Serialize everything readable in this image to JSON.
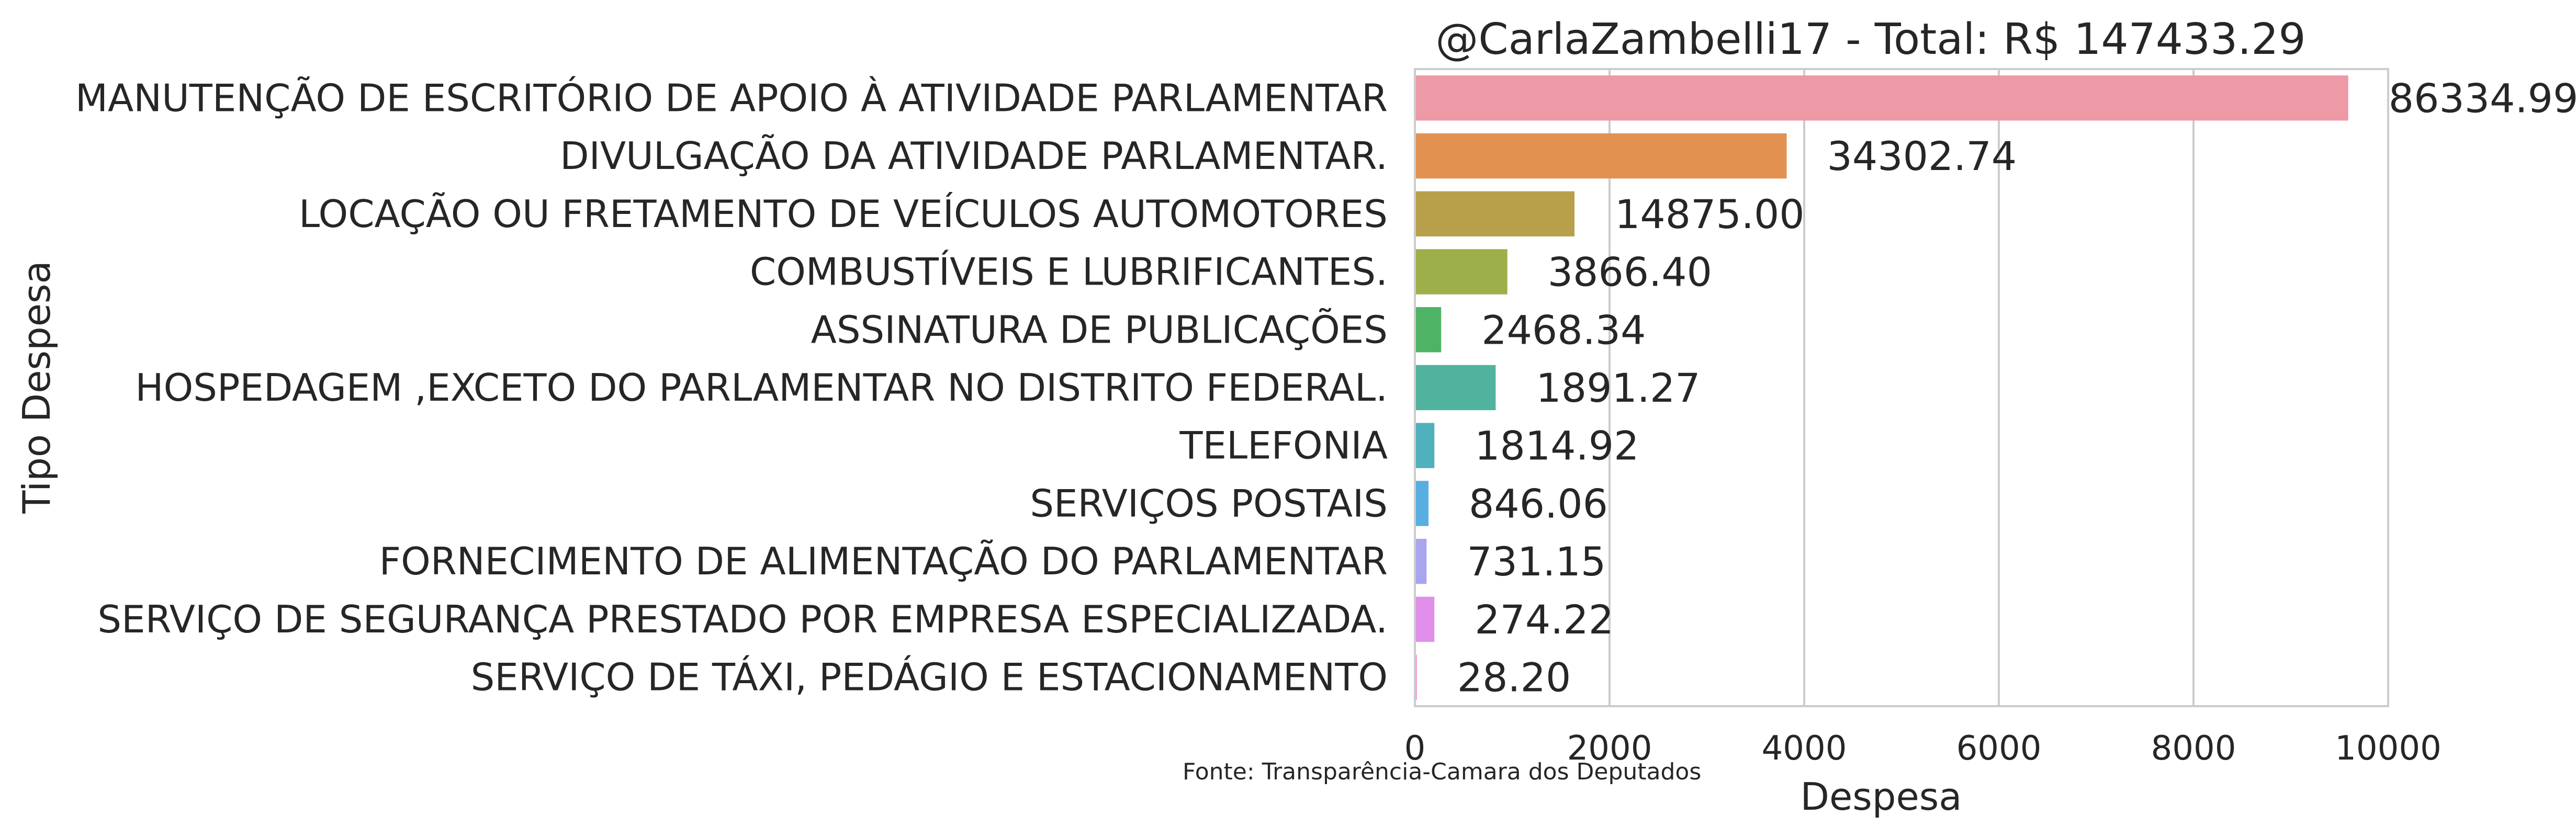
{
  "chart_data": {
    "type": "bar",
    "orientation": "horizontal",
    "title": "@CarlaZambelli17 - Total: R$ 147433.29",
    "xlabel": "Despesa",
    "ylabel": "Tipo Despesa",
    "source_note": "Fonte: Transparência-Camara dos Deputados",
    "xlim": [
      0,
      10000
    ],
    "x_ticks": [
      "0",
      "2000",
      "4000",
      "6000",
      "8000",
      "10000"
    ],
    "grid": true,
    "categories": [
      "MANUTENÇÃO DE ESCRITÓRIO DE APOIO À ATIVIDADE PARLAMENTAR",
      "DIVULGAÇÃO DA ATIVIDADE PARLAMENTAR.",
      "LOCAÇÃO OU FRETAMENTO DE VEÍCULOS AUTOMOTORES",
      "COMBUSTÍVEIS E LUBRIFICANTES.",
      "ASSINATURA DE PUBLICAÇÕES",
      "HOSPEDAGEM ,EXCETO DO PARLAMENTAR NO DISTRITO FEDERAL.",
      "TELEFONIA",
      "SERVIÇOS POSTAIS",
      "FORNECIMENTO DE ALIMENTAÇÃO DO PARLAMENTAR",
      "SERVIÇO DE SEGURANÇA PRESTADO POR EMPRESA ESPECIALIZADA.",
      "SERVIÇO DE TÁXI, PEDÁGIO E ESTACIONAMENTO"
    ],
    "bar_values": [
      9590,
      3820,
      1640,
      950,
      270,
      830,
      200,
      140,
      120,
      200,
      20
    ],
    "value_labels": [
      "86334.99",
      "34302.74",
      "14875.00",
      "3866.40",
      "2468.34",
      "1891.27",
      "1814.92",
      "846.06",
      "731.15",
      "274.22",
      "28.20"
    ],
    "colors": [
      "#ee99a6",
      "#e39150",
      "#b8a04a",
      "#9caf49",
      "#4eb365",
      "#4fb39e",
      "#4fb1bd",
      "#58aee0",
      "#a9a5ee",
      "#e28fec",
      "#ee94c8"
    ]
  }
}
